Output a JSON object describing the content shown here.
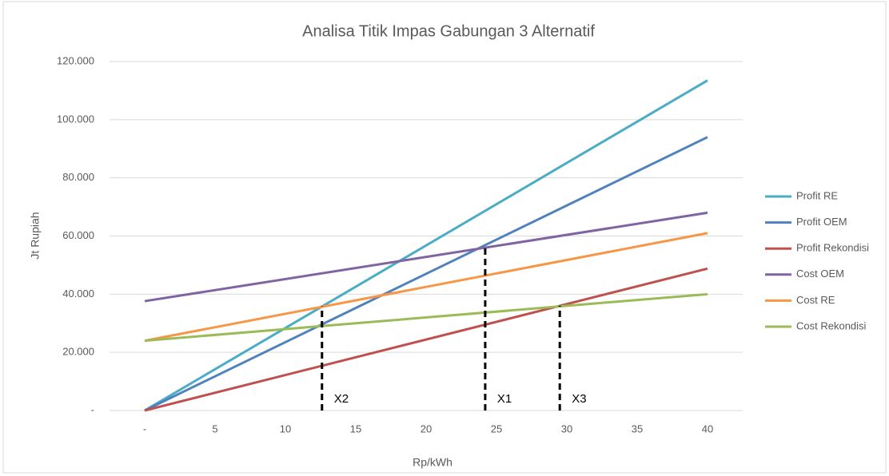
{
  "chart_data": {
    "type": "line",
    "title": "Analisa Titik Impas Gabungan 3 Alternatif",
    "x_label": "Rp/kWh",
    "y_label": "Jt Rupiah",
    "x": [
      0,
      40
    ],
    "series": [
      {
        "name": "Profit RE",
        "color": "#4bacc6",
        "values": [
          0,
          113500
        ]
      },
      {
        "name": "Profit OEM",
        "color": "#4f81bd",
        "values": [
          0,
          94000
        ]
      },
      {
        "name": "Profit Rekondisi",
        "color": "#c0504d",
        "values": [
          0,
          48800
        ]
      },
      {
        "name": "Cost OEM",
        "color": "#8064a2",
        "values": [
          37600,
          68000
        ]
      },
      {
        "name": "Cost RE",
        "color": "#f79646",
        "values": [
          24000,
          61000
        ]
      },
      {
        "name": "Cost Rekondisi",
        "color": "#9bbb59",
        "values": [
          24000,
          40000
        ]
      }
    ],
    "xlim": [
      -2.5,
      42.5
    ],
    "xticks": [
      {
        "value": 0,
        "label": "-"
      },
      5,
      10,
      15,
      20,
      25,
      30,
      35,
      40
    ],
    "ylim": [
      0,
      120000
    ],
    "yticks": [
      {
        "value": 0,
        "label": "-"
      },
      {
        "value": 20000,
        "label": "20.000"
      },
      {
        "value": 40000,
        "label": "40.000"
      },
      {
        "value": 60000,
        "label": "60.000"
      },
      {
        "value": 80000,
        "label": "80.000"
      },
      {
        "value": 100000,
        "label": "100.000"
      },
      {
        "value": 120000,
        "label": "120.000"
      }
    ],
    "grid": true,
    "legend": "right",
    "annotations": [
      {
        "label": "X2",
        "x": 12.6,
        "y": 35800
      },
      {
        "label": "X1",
        "x": 24.2,
        "y": 56500
      },
      {
        "label": "X3",
        "x": 29.5,
        "y": 36000
      }
    ]
  }
}
